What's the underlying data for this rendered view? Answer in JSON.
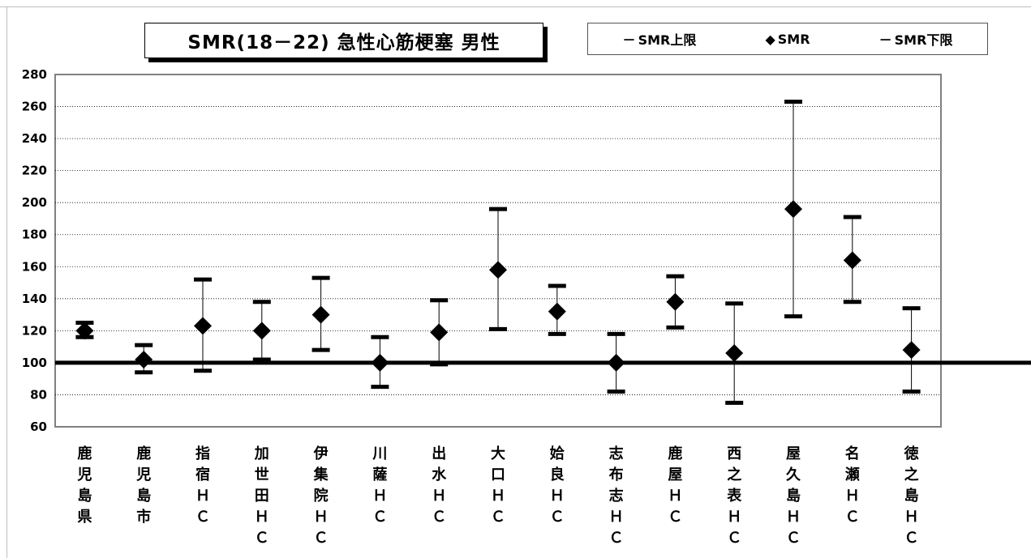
{
  "chart_data": {
    "type": "scatter",
    "title": "SMR(18－22) 急性心筋梗塞 男性",
    "legend": [
      {
        "marker": "－",
        "label": "SMR上限"
      },
      {
        "marker": "◆",
        "label": "SMR"
      },
      {
        "marker": "－",
        "label": "SMR下限"
      }
    ],
    "legend_position": "top-right",
    "ylim": [
      60,
      280
    ],
    "yticks": [
      60,
      80,
      100,
      120,
      140,
      160,
      180,
      200,
      220,
      240,
      260,
      280
    ],
    "grid": "horizontal dotted",
    "reference_line": 100,
    "categories": [
      [
        "鹿",
        "児",
        "島",
        "県"
      ],
      [
        "鹿",
        "児",
        "島",
        "市"
      ],
      [
        "指",
        "宿",
        "Ｈ",
        "Ｃ"
      ],
      [
        "加",
        "世",
        "田",
        "Ｈ",
        "Ｃ"
      ],
      [
        "伊",
        "集",
        "院",
        "Ｈ",
        "Ｃ"
      ],
      [
        "川",
        "薩",
        "Ｈ",
        "Ｃ"
      ],
      [
        "出",
        "水",
        "Ｈ",
        "Ｃ"
      ],
      [
        "大",
        "口",
        "Ｈ",
        "Ｃ"
      ],
      [
        "姶",
        "良",
        "Ｈ",
        "Ｃ"
      ],
      [
        "志",
        "布",
        "志",
        "Ｈ",
        "Ｃ"
      ],
      [
        "鹿",
        "屋",
        "Ｈ",
        "Ｃ"
      ],
      [
        "西",
        "之",
        "表",
        "Ｈ",
        "Ｃ"
      ],
      [
        "屋",
        "久",
        "島",
        "Ｈ",
        "Ｃ"
      ],
      [
        "名",
        "瀬",
        "Ｈ",
        "Ｃ"
      ],
      [
        "徳",
        "之",
        "島",
        "Ｈ",
        "Ｃ"
      ]
    ],
    "series": [
      {
        "name": "SMR上限",
        "values": [
          125,
          111,
          152,
          138,
          153,
          116,
          139,
          196,
          148,
          118,
          154,
          137,
          263,
          191,
          134
        ]
      },
      {
        "name": "SMR",
        "values": [
          120,
          102,
          123,
          120,
          130,
          100,
          119,
          158,
          132,
          100,
          138,
          106,
          196,
          164,
          108
        ]
      },
      {
        "name": "SMR下限",
        "values": [
          116,
          94,
          95,
          102,
          108,
          85,
          99,
          121,
          118,
          82,
          122,
          75,
          129,
          138,
          82
        ]
      }
    ]
  }
}
